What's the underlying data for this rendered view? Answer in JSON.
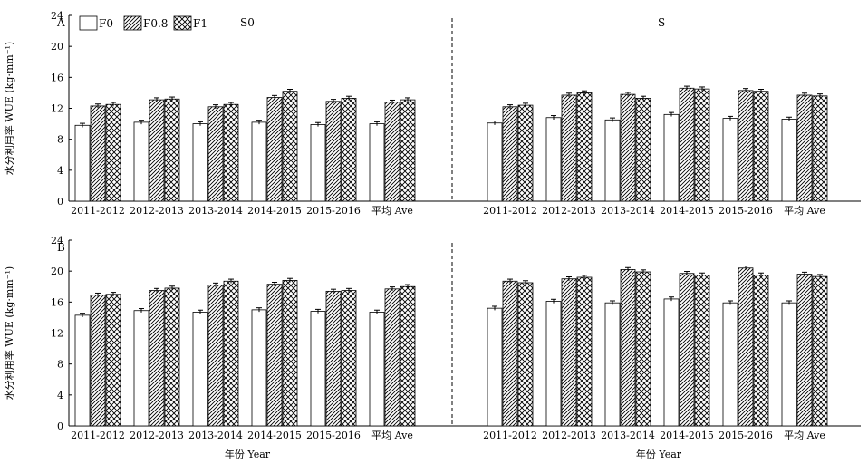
{
  "chart_data": [
    {
      "panel": "A",
      "type": "bar",
      "ylabel": "水分利用率 WUE (kg·mm⁻¹)",
      "ylim": [
        0,
        24
      ],
      "yticks": [
        0,
        4,
        8,
        12,
        16,
        20,
        24
      ],
      "legend": [
        "F0",
        "F0.8",
        "F1"
      ],
      "legend_placement": "top-left",
      "subplots": [
        {
          "label": "S0",
          "categories": [
            "2011-2012",
            "2012-2013",
            "2013-2014",
            "2014-2015",
            "2015-2016",
            "平均 Ave"
          ],
          "series": [
            {
              "name": "F0",
              "values": [
                9.8,
                10.2,
                10.0,
                10.2,
                9.9,
                10.0
              ]
            },
            {
              "name": "F0.8",
              "values": [
                12.3,
                13.1,
                12.2,
                13.4,
                12.9,
                12.8
              ]
            },
            {
              "name": "F1",
              "values": [
                12.5,
                13.2,
                12.5,
                14.2,
                13.3,
                13.1
              ]
            }
          ]
        },
        {
          "label": "S",
          "categories": [
            "2011-2012",
            "2012-2013",
            "2013-2014",
            "2014-2015",
            "2015-2016",
            "平均 Ave"
          ],
          "series": [
            {
              "name": "F0",
              "values": [
                10.1,
                10.8,
                10.5,
                11.2,
                10.7,
                10.6
              ]
            },
            {
              "name": "F0.8",
              "values": [
                12.2,
                13.7,
                13.8,
                14.6,
                14.3,
                13.7
              ]
            },
            {
              "name": "F1",
              "values": [
                12.4,
                14.0,
                13.3,
                14.5,
                14.2,
                13.6
              ]
            }
          ]
        }
      ]
    },
    {
      "panel": "B",
      "type": "bar",
      "ylabel": "水分利用率 WUE (kg·mm⁻¹)",
      "xlabel": "年份 Year",
      "ylim": [
        0,
        24
      ],
      "yticks": [
        0,
        4,
        8,
        12,
        16,
        20,
        24
      ],
      "subplots": [
        {
          "categories": [
            "2011-2012",
            "2012-2013",
            "2013-2014",
            "2014-2015",
            "2015-2016",
            "平均 Ave"
          ],
          "series": [
            {
              "name": "F0",
              "values": [
                14.3,
                14.9,
                14.7,
                15.0,
                14.8,
                14.7
              ]
            },
            {
              "name": "F0.8",
              "values": [
                16.9,
                17.5,
                18.2,
                18.3,
                17.4,
                17.7
              ]
            },
            {
              "name": "F1",
              "values": [
                17.0,
                17.8,
                18.7,
                18.8,
                17.5,
                18.0
              ]
            }
          ]
        },
        {
          "categories": [
            "2011-2012",
            "2012-2013",
            "2013-2014",
            "2014-2015",
            "2015-2016",
            "平均 Ave"
          ],
          "series": [
            {
              "name": "F0",
              "values": [
                15.2,
                16.1,
                15.9,
                16.4,
                15.9,
                15.9
              ]
            },
            {
              "name": "F0.8",
              "values": [
                18.7,
                19.0,
                20.2,
                19.7,
                20.4,
                19.6
              ]
            },
            {
              "name": "F1",
              "values": [
                18.5,
                19.2,
                19.9,
                19.5,
                19.5,
                19.3
              ]
            }
          ]
        }
      ]
    }
  ]
}
